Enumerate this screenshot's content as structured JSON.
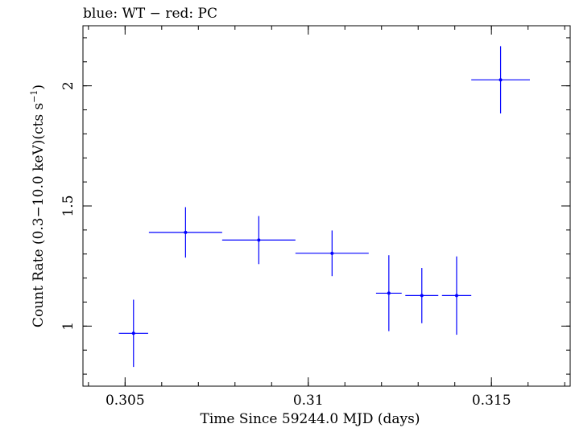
{
  "chart_data": {
    "type": "scatter",
    "title": "blue: WT − red: PC",
    "xlabel": "Time Since 59244.0 MJD (days)",
    "ylabel": "Count Rate (0.3−10.0 keV)(cts s",
    "ylabel_superscript": "−1",
    "ylabel_suffix": ")",
    "xlim": [
      0.30385,
      0.31715
    ],
    "ylim": [
      0.75,
      2.25
    ],
    "xticks": [
      {
        "value": 0.305,
        "label": "0.305"
      },
      {
        "value": 0.31,
        "label": "0.31"
      },
      {
        "value": 0.315,
        "label": "0.315"
      }
    ],
    "yticks": [
      {
        "value": 1,
        "label": "1"
      },
      {
        "value": 1.5,
        "label": "1.5"
      },
      {
        "value": 2,
        "label": "2"
      }
    ],
    "x_minor_step": 0.001,
    "y_minor_step": 0.1,
    "grid": false,
    "series": [
      {
        "color": "#0000ff",
        "points": [
          {
            "x": 0.30523,
            "xerr": 0.0004,
            "y": 0.97,
            "yerr": 0.14
          },
          {
            "x": 0.30665,
            "xerr": 0.001,
            "y": 1.39,
            "yerr": 0.105
          },
          {
            "x": 0.30865,
            "xerr": 0.001,
            "y": 1.358,
            "yerr": 0.1
          },
          {
            "x": 0.31065,
            "xerr": 0.001,
            "y": 1.303,
            "yerr": 0.095
          },
          {
            "x": 0.3122,
            "xerr": 0.00035,
            "y": 1.137,
            "yerr": 0.158
          },
          {
            "x": 0.3131,
            "xerr": 0.00045,
            "y": 1.127,
            "yerr": 0.115
          },
          {
            "x": 0.31405,
            "xerr": 0.0004,
            "y": 1.127,
            "yerr": 0.163
          },
          {
            "x": 0.31525,
            "xerr": 0.0008,
            "y": 2.025,
            "yerr": 0.14
          }
        ]
      }
    ]
  }
}
